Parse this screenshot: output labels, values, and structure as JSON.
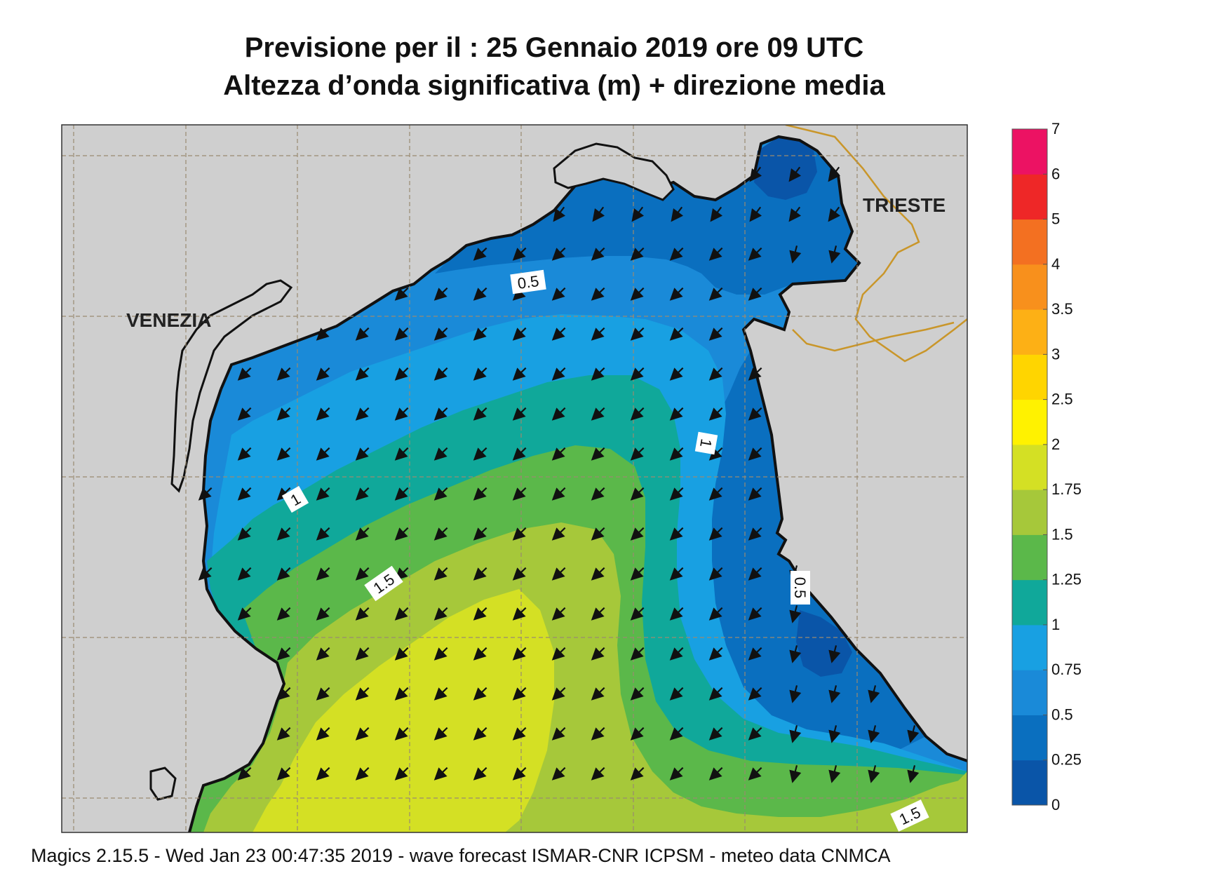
{
  "title": {
    "line1": "Previsione per il  :  25  Gennaio  2019   ore 09 UTC",
    "line2": "Altezza d’onda significativa (m) + direzione media"
  },
  "cities": [
    "VENEZIA",
    "TRIESTE"
  ],
  "contour_labels": [
    "0.5",
    "1",
    "1.5",
    "0.5",
    "1",
    "1.5"
  ],
  "colorbar": {
    "labels": [
      "0",
      "0.25",
      "0.5",
      "0.75",
      "1",
      "1.25",
      "1.5",
      "1.75",
      "2",
      "2.5",
      "3",
      "3.5",
      "4",
      "5",
      "6",
      "7"
    ],
    "colors": [
      "#0a55a8",
      "#0a6fbf",
      "#1a8ad8",
      "#18a0e2",
      "#10a89a",
      "#5bb84a",
      "#a6c83a",
      "#d4e024",
      "#fff200",
      "#ffd500",
      "#fdb015",
      "#f8901c",
      "#f37021",
      "#ee2727",
      "#ec1263"
    ]
  },
  "map_colors": {
    "land": "#cfcfcf",
    "coast": "#111111",
    "border": "#c9962a",
    "grid": "#9a8a70"
  },
  "arrow_direction": "SW",
  "footer": "Magics 2.15.5 - Wed Jan 23 00:47:35 2019 - wave forecast  ISMAR-CNR  ICPSM - meteo data   CNMCA"
}
